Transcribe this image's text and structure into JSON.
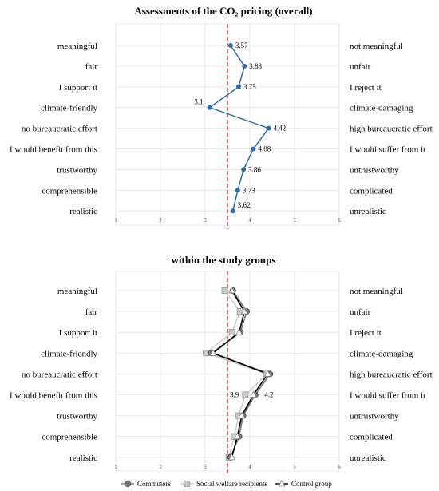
{
  "chart_data": [
    {
      "type": "line",
      "title": "Assessments of the CO₂ pricing (overall)",
      "left_labels": [
        "meaningful",
        "fair",
        "I support it",
        "climate-friendly",
        "no bureaucratic effort",
        "I would benefit from this",
        "trustworthy",
        "comprehensible",
        "realistic"
      ],
      "right_labels": [
        "not meaningful",
        "unfair",
        "I reject it",
        "climate-damaging",
        "high bureaucratic effort",
        "I would suffer from it",
        "untrustworthy",
        "complicated",
        "unrealistic"
      ],
      "x_ticks": [
        "1",
        "2",
        "3",
        "4",
        "5",
        "6"
      ],
      "xlim": [
        1,
        6
      ],
      "reference_line": 3.5,
      "series": [
        {
          "values": [
            3.57,
            3.88,
            3.75,
            3.1,
            4.42,
            4.08,
            3.86,
            3.73,
            3.62
          ]
        }
      ],
      "data_labels": [
        "3.57",
        "3.88",
        "3.75",
        "3.1",
        "4.42",
        "4.08",
        "3.86",
        "3.73",
        "3.62"
      ],
      "colors": {
        "line": "#2f6ea8",
        "marker": "#2f6ea8",
        "reference": "#e0302a",
        "grid": "#e3e3e3"
      }
    },
    {
      "type": "line",
      "title": "within the study groups",
      "left_labels": [
        "meaningful",
        "fair",
        "I support it",
        "climate-friendly",
        "no bureaucratic effort",
        "I would benefit from this",
        "trustworthy",
        "comprehensible",
        "realistic"
      ],
      "right_labels": [
        "not meaningful",
        "unfair",
        "I reject it",
        "climate-damaging",
        "high bureaucratic effort",
        "I would suffer from it",
        "untrustworthy",
        "complicated",
        "unrealistic"
      ],
      "x_ticks": [
        "1",
        "2",
        "3",
        "4",
        "5",
        "6"
      ],
      "xlim": [
        1,
        6
      ],
      "reference_line": 3.5,
      "series": [
        {
          "name": "Commuters",
          "values": [
            3.62,
            3.93,
            3.79,
            3.14,
            4.45,
            4.12,
            3.85,
            3.76,
            3.57
          ],
          "color": "#777777",
          "marker": "circle"
        },
        {
          "name": "Social welfare recipients",
          "values": [
            3.44,
            3.78,
            3.6,
            3.02,
            4.38,
            3.9,
            3.75,
            3.65,
            3.53
          ],
          "color": "#c8c8c8",
          "marker": "square"
        },
        {
          "name": "Control group",
          "values": [
            3.6,
            3.88,
            3.76,
            3.18,
            4.4,
            4.08,
            3.82,
            3.72,
            3.6
          ],
          "color": "#000000",
          "marker": "triangle"
        }
      ],
      "annotations": [
        "3.9",
        "4.2"
      ],
      "colors": {
        "reference": "#e0302a",
        "grid": "#e3e3e3"
      }
    }
  ]
}
